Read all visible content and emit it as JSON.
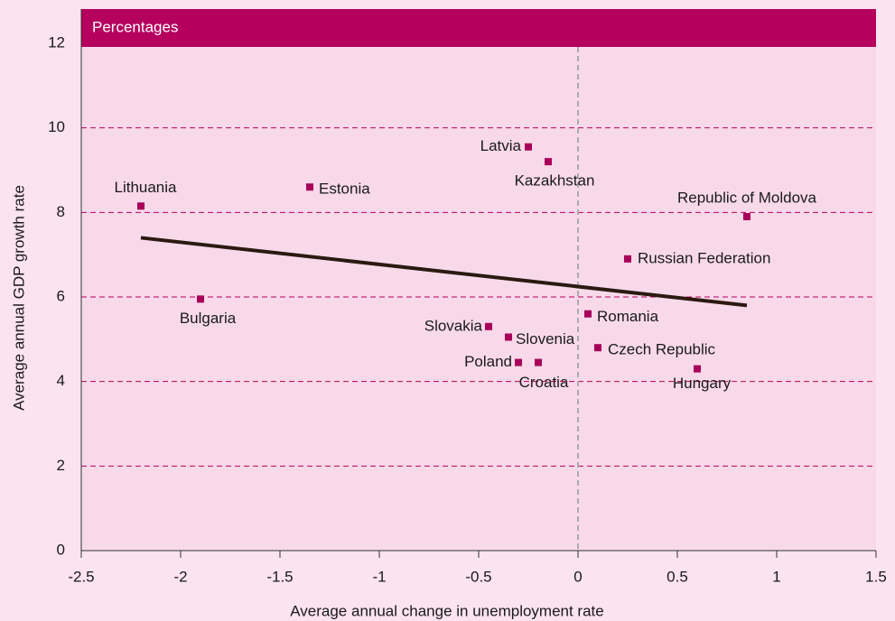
{
  "chart_data": {
    "type": "scatter",
    "subtitle": "Percentages",
    "x_label": "Average annual change in unemployment rate",
    "y_label": "Average annual GDP growth rate",
    "xlim": [
      -2.5,
      1.5
    ],
    "xticks": [
      -2.5,
      -2,
      -1.5,
      -1,
      -0.5,
      0,
      0.5,
      1,
      1.5
    ],
    "ylim": [
      0,
      12
    ],
    "yticks": [
      0,
      2,
      4,
      6,
      8,
      10,
      12
    ],
    "grid": true,
    "color": "#a8005a",
    "series": [
      {
        "names": [
          "Lithuania",
          "Estonia",
          "Bulgaria",
          "Latvia",
          "Kazakhstan",
          "Republic of Moldova",
          "Russian Federation",
          "Romania",
          "Slovakia",
          "Slovenia",
          "Czech Republic",
          "Poland",
          "Croatia",
          "Hungary"
        ],
        "x": [
          -2.2,
          -1.35,
          -1.9,
          -0.25,
          -0.15,
          0.85,
          0.25,
          0.05,
          -0.45,
          -0.35,
          0.1,
          -0.3,
          -0.2,
          0.6
        ],
        "values": [
          8.15,
          8.6,
          5.95,
          9.55,
          9.2,
          7.9,
          6.9,
          5.6,
          5.3,
          5.05,
          4.8,
          4.45,
          4.45,
          4.3
        ]
      }
    ],
    "trendline": {
      "x": [
        -2.2,
        0.85
      ],
      "values": [
        7.4,
        5.8
      ],
      "color": "#2b1a10"
    }
  }
}
